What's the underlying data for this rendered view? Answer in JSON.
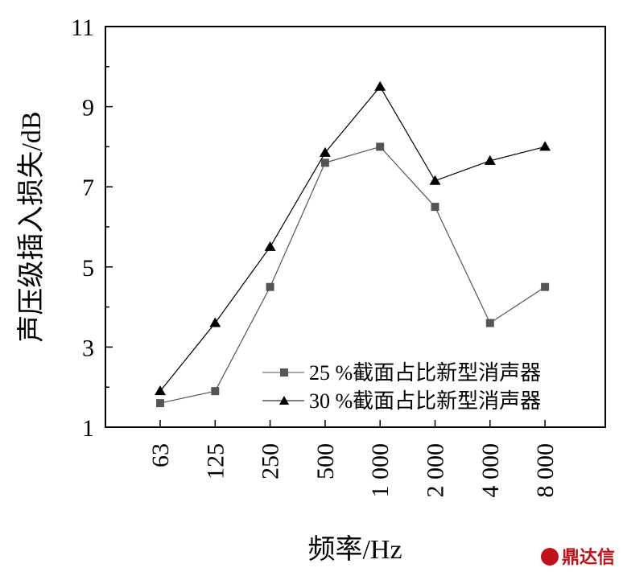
{
  "chart_data": {
    "type": "line",
    "categories": [
      "63",
      "125",
      "250",
      "500",
      "1 000",
      "2 000",
      "4 000",
      "8 000"
    ],
    "series": [
      {
        "name": "25 %截面占比新型消声器",
        "marker": "square",
        "color": "#555555",
        "values": [
          1.6,
          1.9,
          4.5,
          7.6,
          8.0,
          6.5,
          3.6,
          4.5
        ]
      },
      {
        "name": "30 %截面占比新型消声器",
        "marker": "triangle",
        "color": "#000000",
        "values": [
          1.9,
          3.6,
          5.5,
          7.85,
          9.5,
          7.15,
          7.65,
          8.0
        ]
      }
    ],
    "xlabel": "频率/Hz",
    "ylabel": "声压级插入损失/dB",
    "ylim": [
      1,
      11
    ],
    "yticks": [
      1,
      3,
      5,
      7,
      9,
      11
    ],
    "grid": false,
    "legend_position": "bottom-right"
  },
  "watermark": {
    "text": "鼎达信",
    "color": "#c0101a"
  }
}
